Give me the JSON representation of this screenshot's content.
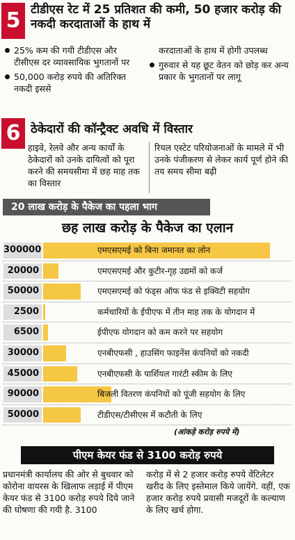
{
  "section5": {
    "number": "5",
    "title": "टीडीएस रेट में 25 प्रतिशत की कमी, 50 हजार करोड़ की नकदी करदाताओं के हाथ में",
    "left": [
      "25% कम की गयी टीडीएस और टीसीएस दर व्यावसायिक भुगतानों पर",
      "50,000 करोड़ रुपये की अतिरिक्त नकदी इससे"
    ],
    "right": [
      "करदाताओं के हाथ में होगी उपलब्ध",
      "गुरुवार से यह छूट वेतन को छोड़ कर अन्य प्रकार के भुगतानों पर लागू"
    ]
  },
  "section6": {
    "number": "6",
    "title": "ठेकेदारों की कॉन्ट्रैक्ट अवधि में विस्तार",
    "left": "हाइवे, रेलवे और अन्य कार्यों के ठेकेदारों को उनके दायित्वों को पूरा करने की समयसीमा में छह माह तक का विस्तार",
    "right": "रियल एस्टेट परियोजनाओं के मामले में भी उनके पंजीकरण से लेकर कार्य पूर्ण होने की तय समय सीमा बढ़ी"
  },
  "package": {
    "banner": "20 लाख करोड़ के पैकेज का पहला भाग",
    "title": "छह लाख करोड़ के पैकेज का एलान",
    "xlim": [
      0,
      300000
    ],
    "rows": [
      {
        "value": 300000,
        "label": "एमएसएमई को बिना जमानत का लोन"
      },
      {
        "value": 20000,
        "label": "एमएसएमई और कुटीर-गृह उद्यमों को कर्ज"
      },
      {
        "value": 50000,
        "label": "एमएसएमई को फंड्स ऑफ फंड से इक्विटी सहयोग"
      },
      {
        "value": 2500,
        "label": "कर्मचारियों के ईपीएफ में तीन माह तक के योगदान में"
      },
      {
        "value": 6500,
        "label": "ईपीएफ योगदान को कम करने पर सहयोग"
      },
      {
        "value": 30000,
        "label": "एनबीएफसी , हाउसिंग फाइनेंस कंपनियों को नकदी"
      },
      {
        "value": 45000,
        "label": "एनबीएफसी के पार्शियल गारंटी स्कीम के लिए"
      },
      {
        "value": 90000,
        "label": "बिजली वितरण कंपनियों को पूंजी सहयोग के लिए"
      },
      {
        "value": 50000,
        "label": "टीडीएस/टीसीएस में कटौती के लिए"
      }
    ],
    "note": "(आंकड़े करोड़ रुपये में)"
  },
  "pmcares": {
    "title": "पीएम केयर फंड से 3100 करोड़ रुपये",
    "left": "प्रधानमंत्री कार्यालय की ओर से बुधवार को कोरोना वायरस के खिलाफ लड़ाई में पीएम केयर फंड से 3100 करोड़ रुपये दिये जाने की घोषणा की गयी है. 3100",
    "right": "करोड़ में से 2 हजार करोड़ रुपये वेंटिलेटर खरीद के लिए इस्तेमाल किये जायेंगे. वहीं, एक हजार करोड़ रुपये प्रवासी मजदूरों के कल्याण के लिए खर्च होगा."
  }
}
